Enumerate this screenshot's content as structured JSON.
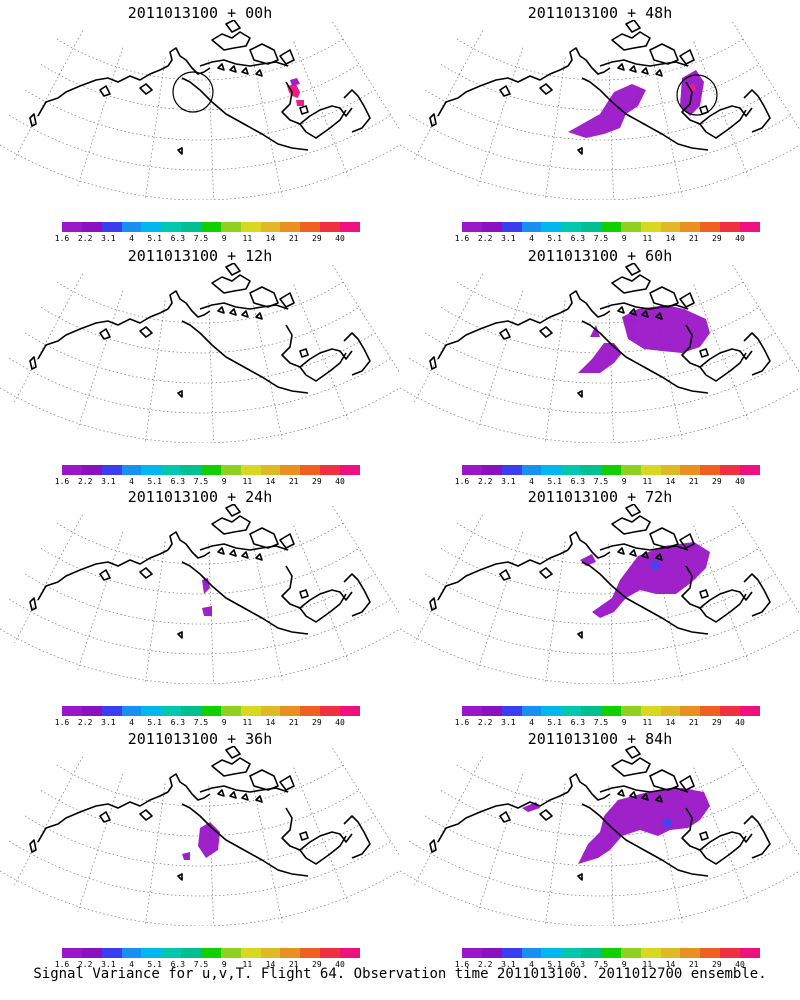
{
  "panels": [
    {
      "title": "2011013100 + 00h",
      "circle": [
        193,
        92
      ],
      "fields": "f00"
    },
    {
      "title": "2011013100 + 48h",
      "circle": [
        697,
        95
      ],
      "fields": "f48"
    },
    {
      "title": "2011013100 + 12h",
      "circle": null,
      "fields": "f12"
    },
    {
      "title": "2011013100 + 60h",
      "circle": null,
      "fields": "f60"
    },
    {
      "title": "2011013100 + 24h",
      "circle": null,
      "fields": "f24"
    },
    {
      "title": "2011013100 + 72h",
      "circle": null,
      "fields": "f72"
    },
    {
      "title": "2011013100 + 36h",
      "circle": null,
      "fields": "f36"
    },
    {
      "title": "2011013100 + 84h",
      "circle": null,
      "fields": "f84"
    }
  ],
  "colorbar": {
    "colors": [
      "#9a16c8",
      "#8a10c0",
      "#3c3cf0",
      "#1890f0",
      "#00b8f0",
      "#00c8b0",
      "#00c090",
      "#10d000",
      "#90d020",
      "#d8d820",
      "#e0b828",
      "#e89020",
      "#f06020",
      "#f03040",
      "#f01080"
    ],
    "labels": [
      "1.6",
      "2.2",
      "3.1",
      "4",
      "5.1",
      "6.3",
      "7.5",
      "9",
      "11",
      "14",
      "21",
      "29",
      "40"
    ]
  },
  "footer": "Signal Variance for u,v,T. Flight 64. Observation time 2011013100. 2011012700 ensemble."
}
